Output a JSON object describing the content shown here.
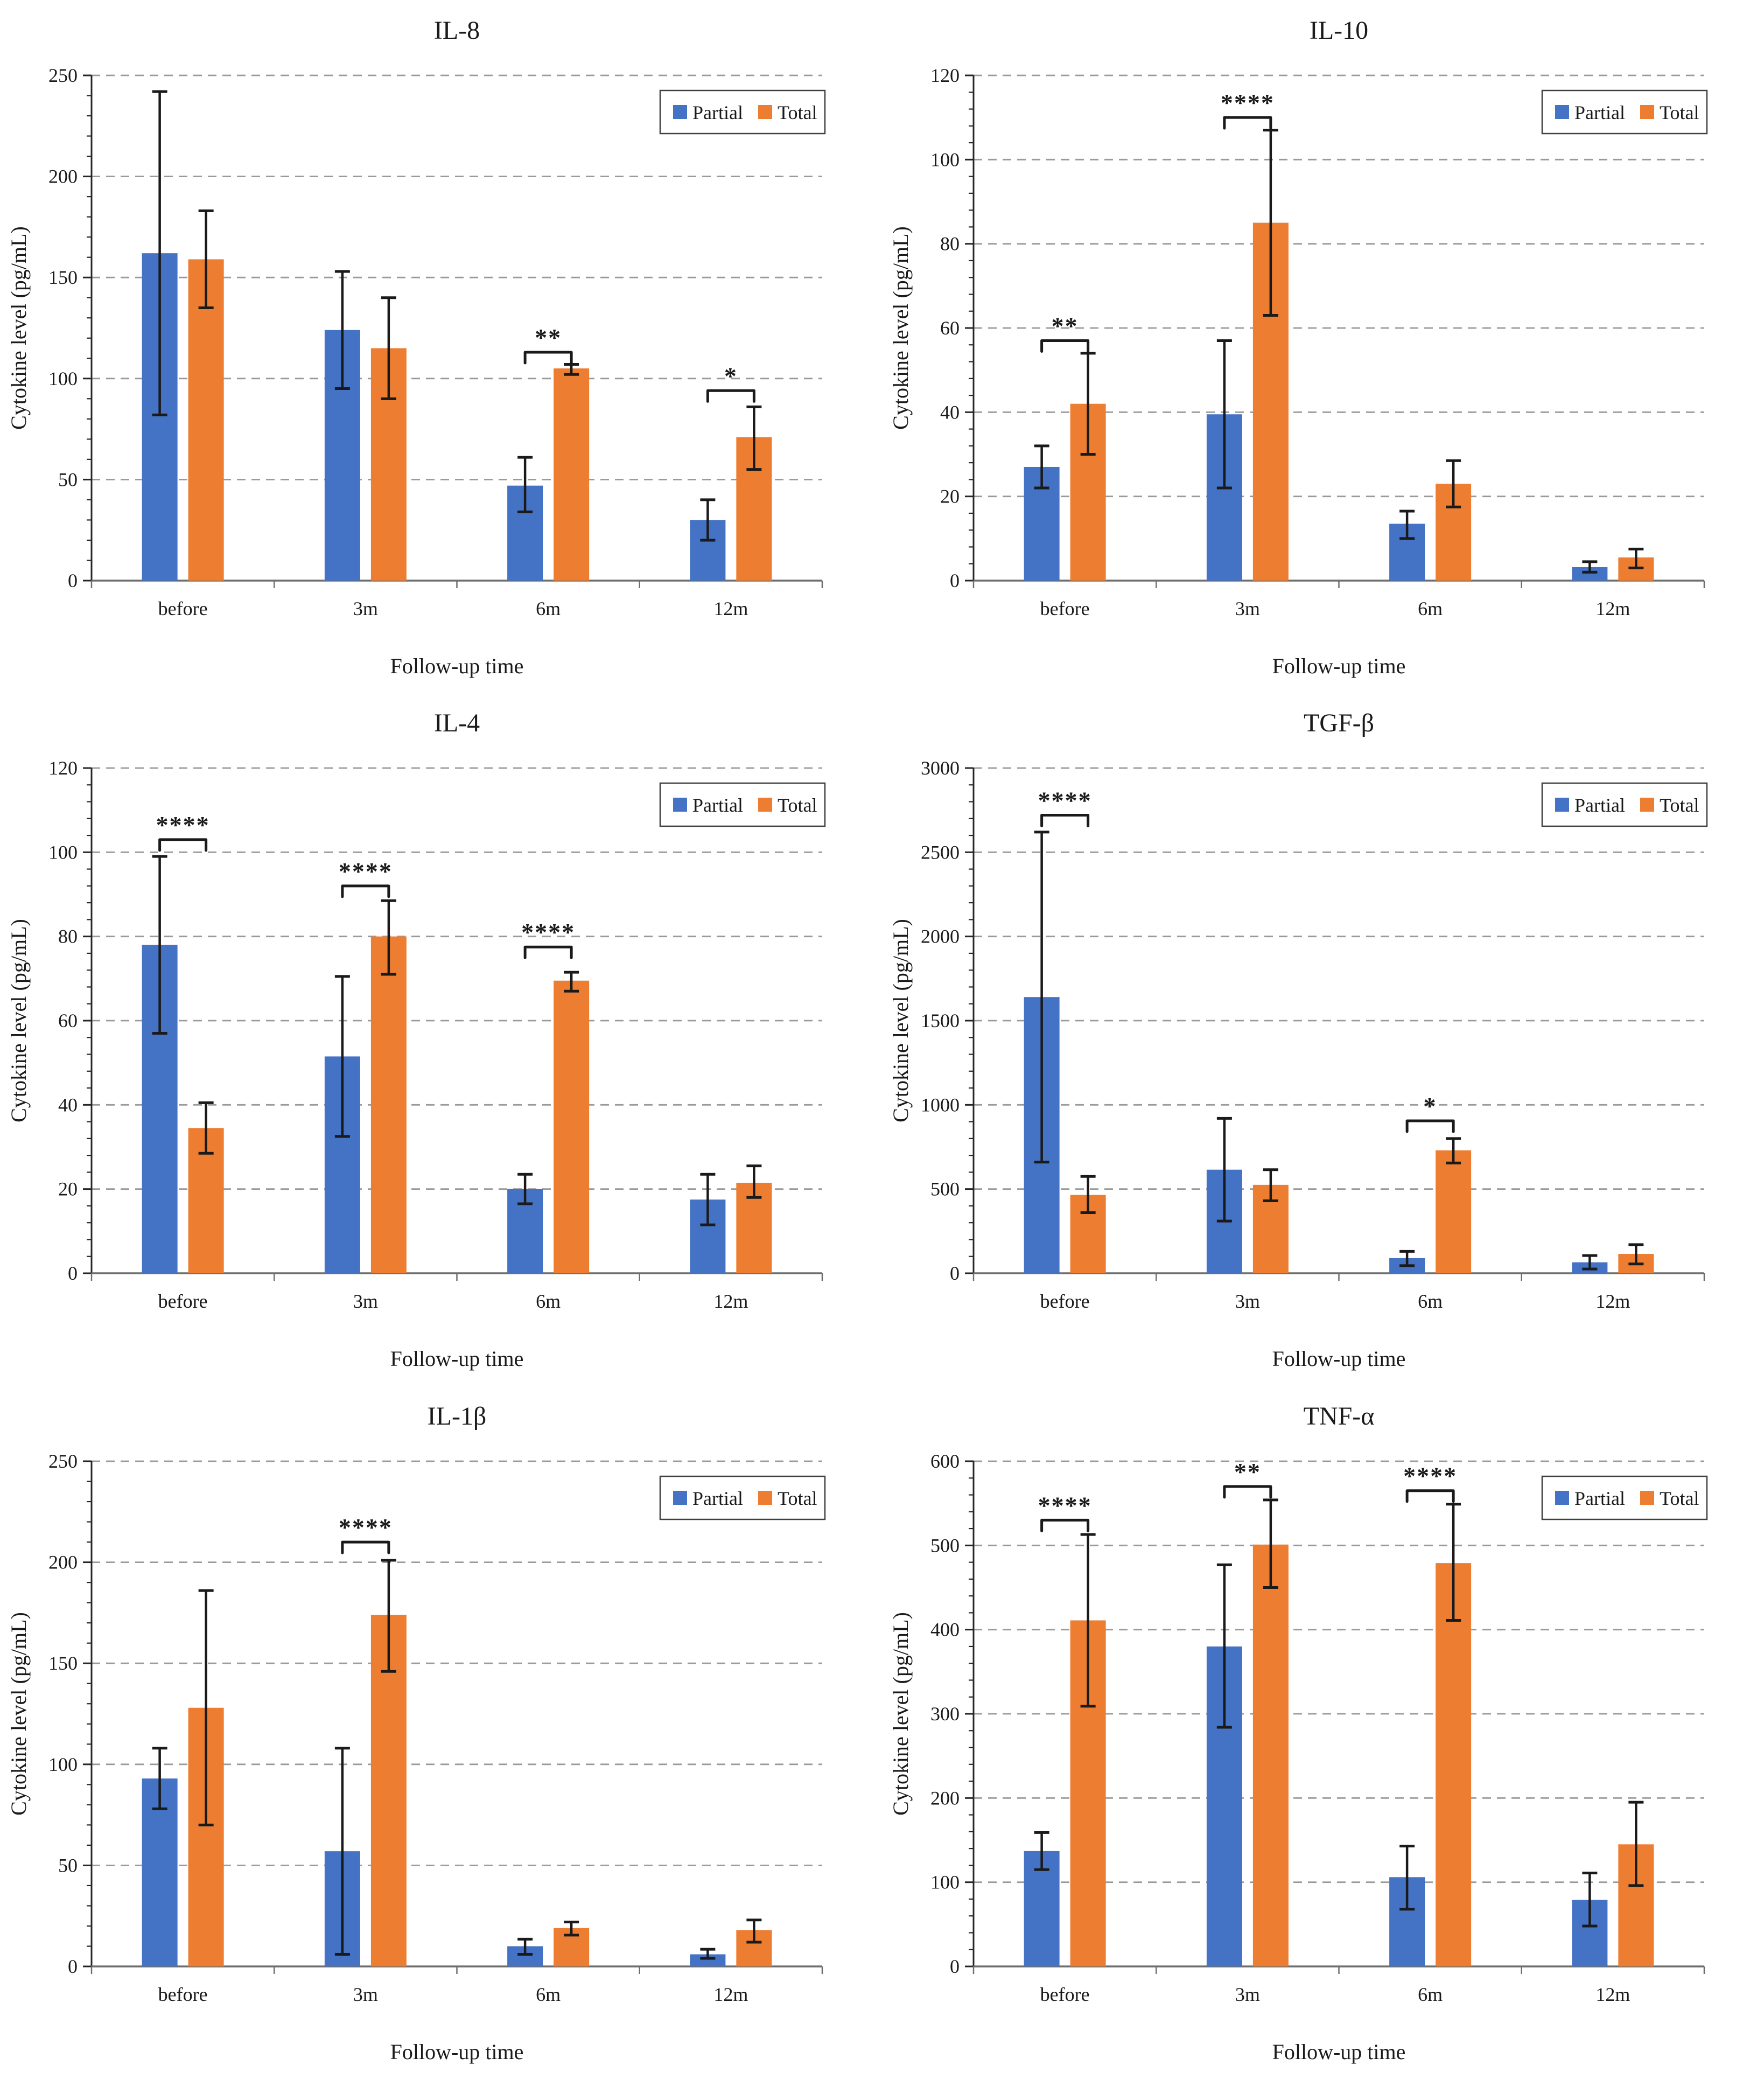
{
  "figure": {
    "background": "#ffffff",
    "columns": 2,
    "rows": 3
  },
  "legend": {
    "items": [
      {
        "label": "Partial",
        "color": "#4472C4"
      },
      {
        "label": "Total",
        "color": "#ED7D31"
      }
    ],
    "position": "top-right",
    "border_color": "#3f3f3f"
  },
  "style_colors": {
    "partial_blue": "#4472C4",
    "total_orange": "#ED7D31",
    "gridline_gray": "#9a9a9a",
    "axis_gray": "#6e6e6e",
    "error_bar_black": "#1a1a1a"
  },
  "chart_data": [
    {
      "type": "bar",
      "title": "IL-8",
      "xlabel": "Follow-up time",
      "ylabel": "Cytokine level (pg/mL)",
      "categories": [
        "before",
        "3m",
        "6m",
        "12m"
      ],
      "ylim": [
        0,
        250
      ],
      "ytick_step": 50,
      "yminor_step": 10,
      "grid": "dashed-horizontal",
      "legend_position": "top-right",
      "series": [
        {
          "name": "Partial",
          "color": "#4472C4",
          "values": [
            162,
            124,
            47,
            30
          ],
          "whisker_lo": [
            82,
            95,
            34,
            20
          ],
          "whisker_hi": [
            242,
            153,
            61,
            40
          ]
        },
        {
          "name": "Total",
          "color": "#ED7D31",
          "values": [
            159,
            115,
            105,
            71
          ],
          "whisker_lo": [
            135,
            90,
            102,
            55
          ],
          "whisker_hi": [
            183,
            140,
            107,
            86
          ]
        }
      ],
      "significance": [
        {
          "category_index": 2,
          "label": "**",
          "y": 113
        },
        {
          "category_index": 3,
          "label": "*",
          "y": 94
        }
      ]
    },
    {
      "type": "bar",
      "title": "IL-10",
      "xlabel": "Follow-up time",
      "ylabel": "Cytokine level (pg/mL)",
      "categories": [
        "before",
        "3m",
        "6m",
        "12m"
      ],
      "ylim": [
        0,
        120
      ],
      "ytick_step": 20,
      "yminor_step": 4,
      "grid": "dashed-horizontal",
      "legend_position": "top-right",
      "series": [
        {
          "name": "Partial",
          "color": "#4472C4",
          "values": [
            27,
            39.5,
            13.5,
            3.2
          ],
          "whisker_lo": [
            22,
            22,
            10,
            2
          ],
          "whisker_hi": [
            32,
            57,
            16.5,
            4.5
          ]
        },
        {
          "name": "Total",
          "color": "#ED7D31",
          "values": [
            42,
            85,
            23,
            5.5
          ],
          "whisker_lo": [
            30,
            63,
            17.5,
            3
          ],
          "whisker_hi": [
            54,
            107,
            28.5,
            7.5
          ]
        }
      ],
      "significance": [
        {
          "category_index": 0,
          "label": "**",
          "y": 57
        },
        {
          "category_index": 1,
          "label": "****",
          "y": 110
        }
      ]
    },
    {
      "type": "bar",
      "title": "IL-4",
      "xlabel": "Follow-up time",
      "ylabel": "Cytokine level (pg/mL)",
      "categories": [
        "before",
        "3m",
        "6m",
        "12m"
      ],
      "ylim": [
        0,
        120
      ],
      "ytick_step": 20,
      "yminor_step": 4,
      "grid": "dashed-horizontal",
      "legend_position": "top-right",
      "series": [
        {
          "name": "Partial",
          "color": "#4472C4",
          "values": [
            78,
            51.5,
            20,
            17.5
          ],
          "whisker_lo": [
            57,
            32.5,
            16.5,
            11.5
          ],
          "whisker_hi": [
            99,
            70.5,
            23.5,
            23.5
          ]
        },
        {
          "name": "Total",
          "color": "#ED7D31",
          "values": [
            34.5,
            80,
            69.5,
            21.5
          ],
          "whisker_lo": [
            28.5,
            71,
            67,
            18
          ],
          "whisker_hi": [
            40.5,
            88.5,
            71.5,
            25.5
          ]
        }
      ],
      "significance": [
        {
          "category_index": 0,
          "label": "****",
          "y": 103
        },
        {
          "category_index": 1,
          "label": "****",
          "y": 92
        },
        {
          "category_index": 2,
          "label": "****",
          "y": 77.5
        }
      ]
    },
    {
      "type": "bar",
      "title": "TGF-β",
      "xlabel": "Follow-up time",
      "ylabel": "Cytokine level (pg/mL)",
      "categories": [
        "before",
        "3m",
        "6m",
        "12m"
      ],
      "ylim": [
        0,
        3000
      ],
      "ytick_step": 500,
      "yminor_step": 100,
      "grid": "dashed-horizontal",
      "legend_position": "top-right",
      "series": [
        {
          "name": "Partial",
          "color": "#4472C4",
          "values": [
            1640,
            615,
            90,
            65
          ],
          "whisker_lo": [
            660,
            310,
            45,
            25
          ],
          "whisker_hi": [
            2620,
            920,
            130,
            105
          ]
        },
        {
          "name": "Total",
          "color": "#ED7D31",
          "values": [
            465,
            525,
            730,
            115
          ],
          "whisker_lo": [
            360,
            430,
            655,
            55
          ],
          "whisker_hi": [
            575,
            615,
            800,
            170
          ]
        }
      ],
      "significance": [
        {
          "category_index": 0,
          "label": "****",
          "y": 2720
        },
        {
          "category_index": 2,
          "label": "*",
          "y": 905
        }
      ]
    },
    {
      "type": "bar",
      "title": "IL-1β",
      "xlabel": "Follow-up time",
      "ylabel": "Cytokine level (pg/mL)",
      "categories": [
        "before",
        "3m",
        "6m",
        "12m"
      ],
      "ylim": [
        0,
        250
      ],
      "ytick_step": 50,
      "yminor_step": 10,
      "grid": "dashed-horizontal",
      "legend_position": "top-right",
      "series": [
        {
          "name": "Partial",
          "color": "#4472C4",
          "values": [
            93,
            57,
            10,
            6
          ],
          "whisker_lo": [
            78,
            6,
            6,
            4
          ],
          "whisker_hi": [
            108,
            108,
            13.5,
            8.5
          ]
        },
        {
          "name": "Total",
          "color": "#ED7D31",
          "values": [
            128,
            174,
            19,
            18
          ],
          "whisker_lo": [
            70,
            146,
            15.5,
            12
          ],
          "whisker_hi": [
            186,
            201,
            22,
            23
          ]
        }
      ],
      "significance": [
        {
          "category_index": 1,
          "label": "****",
          "y": 210
        }
      ]
    },
    {
      "type": "bar",
      "title": "TNF-α",
      "xlabel": "Follow-up time",
      "ylabel": "Cytokine level (pg/mL)",
      "categories": [
        "before",
        "3m",
        "6m",
        "12m"
      ],
      "ylim": [
        0,
        600
      ],
      "ytick_step": 100,
      "yminor_step": 20,
      "grid": "dashed-horizontal",
      "legend_position": "top-right",
      "series": [
        {
          "name": "Partial",
          "color": "#4472C4",
          "values": [
            137,
            380,
            106,
            79
          ],
          "whisker_lo": [
            115,
            284,
            68,
            48
          ],
          "whisker_hi": [
            159,
            477,
            143,
            111
          ]
        },
        {
          "name": "Total",
          "color": "#ED7D31",
          "values": [
            411,
            501,
            479,
            145
          ],
          "whisker_lo": [
            309,
            450,
            411,
            96
          ],
          "whisker_hi": [
            513,
            554,
            549,
            195
          ]
        }
      ],
      "significance": [
        {
          "category_index": 0,
          "label": "****",
          "y": 530
        },
        {
          "category_index": 1,
          "label": "**",
          "y": 570
        },
        {
          "category_index": 2,
          "label": "****",
          "y": 565
        }
      ]
    }
  ]
}
